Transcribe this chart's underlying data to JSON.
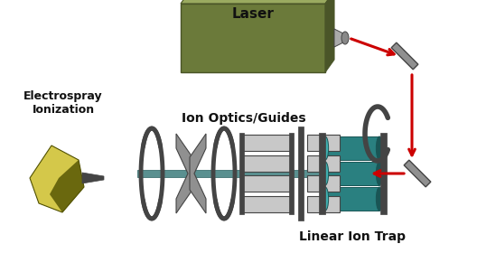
{
  "background_color": "#ffffff",
  "labels": {
    "laser": "Laser",
    "esi": "Electrospray\nIonization",
    "ion_optics": "Ion Optics/Guides",
    "linear_trap": "Linear Ion Trap"
  },
  "colors": {
    "laser_body": "#6b7a3a",
    "laser_body_dark": "#4a5528",
    "laser_body_light": "#9aaa60",
    "trap_teal": "#2a8080",
    "trap_teal_dark": "#1a5555",
    "trap_teal_light": "#40b0b0",
    "gray_optics": "#909090",
    "gray_dark": "#444444",
    "gray_med": "#777777",
    "gray_light": "#c8c8c8",
    "red_arrow": "#cc0000",
    "mirror_gray": "#909090",
    "black": "#111111",
    "white": "#ffffff",
    "esi_yellow_light": "#d4c84a",
    "esi_yellow_dark": "#505000",
    "beam_gray": "#5a9090"
  },
  "figsize": [
    5.28,
    3.01
  ],
  "dpi": 100
}
